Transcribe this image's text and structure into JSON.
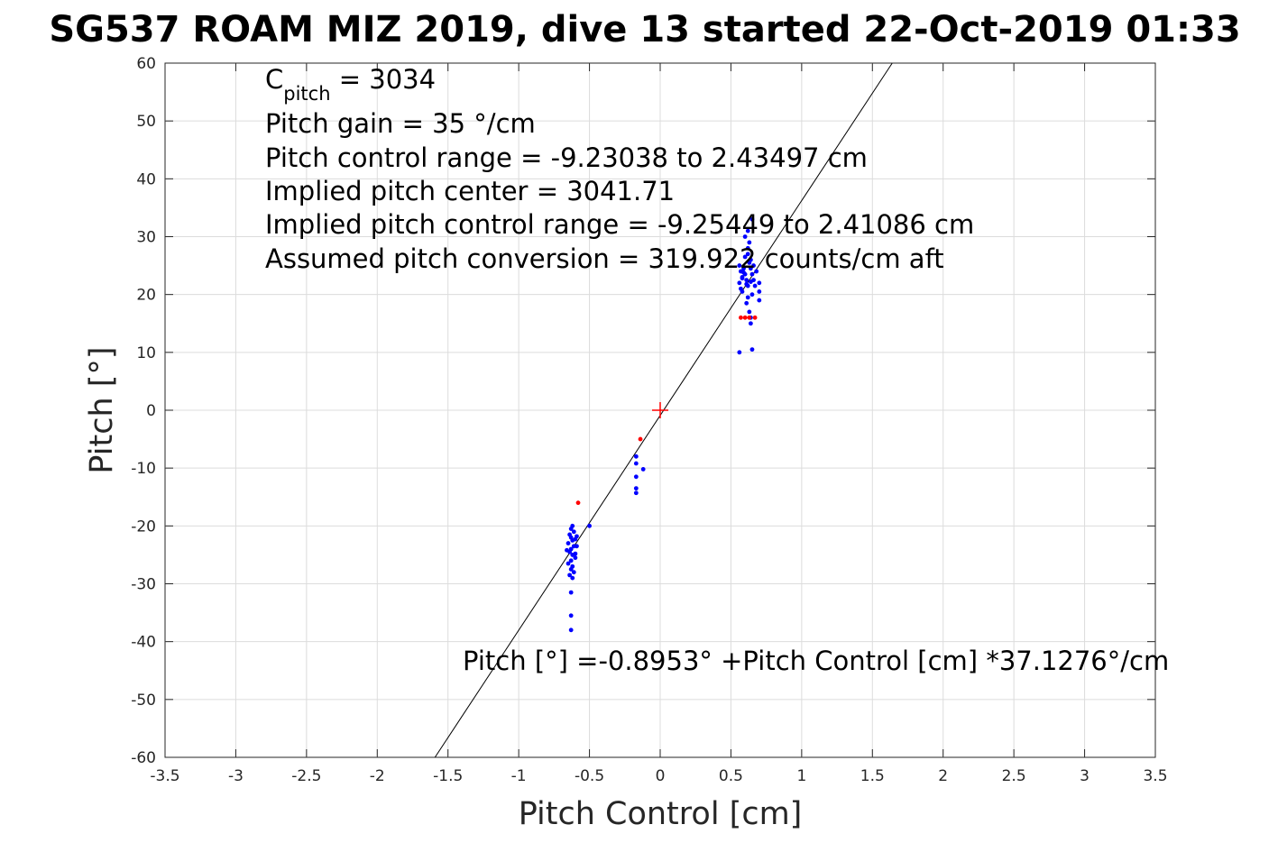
{
  "chart_data": {
    "type": "scatter",
    "title": "SG537 ROAM MIZ 2019, dive 13 started 22-Oct-2019 01:33",
    "xlabel": "Pitch Control [cm]",
    "ylabel": "Pitch [°]",
    "xlim": [
      -3.5,
      3.5
    ],
    "ylim": [
      -60,
      60
    ],
    "x_ticks": [
      -3.5,
      -3,
      -2.5,
      -2,
      -1.5,
      -1,
      -0.5,
      0,
      0.5,
      1,
      1.5,
      2,
      2.5,
      3,
      3.5
    ],
    "y_ticks": [
      -60,
      -50,
      -40,
      -30,
      -20,
      -10,
      0,
      10,
      20,
      30,
      40,
      50,
      60
    ],
    "x_tick_labels": [
      "-3.5",
      "-3",
      "-2.5",
      "-2",
      "-1.5",
      "-1",
      "-0.5",
      "0",
      "0.5",
      "1",
      "1.5",
      "2",
      "2.5",
      "3",
      "3.5"
    ],
    "y_tick_labels": [
      "-60",
      "-50",
      "-40",
      "-30",
      "-20",
      "-10",
      "0",
      "10",
      "20",
      "30",
      "40",
      "50",
      "60"
    ],
    "grid": true,
    "annotations": {
      "c_pitch_symbol": "C",
      "c_pitch_subscript": "pitch",
      "c_pitch_value": " = 3034",
      "lines": [
        "Pitch gain = 35 °/cm",
        "Pitch control range = -9.23038 to 2.43497 cm",
        "Implied pitch center = 3041.71",
        "Implied pitch control range = -9.25449 to 2.41086 cm",
        "Assumed pitch conversion = 319.922 counts/cm aft"
      ],
      "fit_label": "Pitch [°] =-0.8953° +Pitch Control [cm] *37.1276°/cm"
    },
    "fit_line": {
      "intercept": -0.8953,
      "slope": 37.1276,
      "color": "#000000"
    },
    "center_marker": {
      "x": 0,
      "y": 0,
      "color": "#ff0000"
    },
    "series": [
      {
        "color": "#0000ff",
        "points": [
          [
            -0.64,
            -21.5
          ],
          [
            -0.63,
            -22.0
          ],
          [
            -0.62,
            -22.5
          ],
          [
            -0.65,
            -23.0
          ],
          [
            -0.61,
            -23.5
          ],
          [
            -0.63,
            -24.0
          ],
          [
            -0.64,
            -24.5
          ],
          [
            -0.62,
            -25.0
          ],
          [
            -0.6,
            -25.5
          ],
          [
            -0.63,
            -26.0
          ],
          [
            -0.65,
            -26.5
          ],
          [
            -0.62,
            -27.0
          ],
          [
            -0.63,
            -27.5
          ],
          [
            -0.61,
            -28.0
          ],
          [
            -0.64,
            -28.5
          ],
          [
            -0.62,
            -29.0
          ],
          [
            -0.63,
            -20.5
          ],
          [
            -0.61,
            -21.0
          ],
          [
            -0.6,
            -22.3
          ],
          [
            -0.59,
            -23.5
          ],
          [
            -0.66,
            -24.2
          ],
          [
            -0.6,
            -24.8
          ],
          [
            -0.59,
            -21.8
          ],
          [
            -0.62,
            -20.0
          ],
          [
            -0.63,
            -31.5
          ],
          [
            -0.63,
            -35.5
          ],
          [
            -0.63,
            -38.0
          ],
          [
            -0.5,
            -20.0
          ],
          [
            -0.17,
            -8.0
          ],
          [
            -0.17,
            -9.2
          ],
          [
            -0.17,
            -11.5
          ],
          [
            -0.17,
            -13.5
          ],
          [
            -0.17,
            -14.3
          ],
          [
            -0.12,
            -10.2
          ],
          [
            0.56,
            25.0
          ],
          [
            0.57,
            24.0
          ],
          [
            0.58,
            23.0
          ],
          [
            0.56,
            22.0
          ],
          [
            0.57,
            21.0
          ],
          [
            0.58,
            20.5
          ],
          [
            0.59,
            24.5
          ],
          [
            0.6,
            23.5
          ],
          [
            0.61,
            22.5
          ],
          [
            0.62,
            21.5
          ],
          [
            0.63,
            25.5
          ],
          [
            0.64,
            24.5
          ],
          [
            0.65,
            23.5
          ],
          [
            0.66,
            22.5
          ],
          [
            0.67,
            21.5
          ],
          [
            0.6,
            26.5
          ],
          [
            0.62,
            27.0
          ],
          [
            0.64,
            26.0
          ],
          [
            0.66,
            25.0
          ],
          [
            0.68,
            24.0
          ],
          [
            0.7,
            22.0
          ],
          [
            0.7,
            20.5
          ],
          [
            0.7,
            19.0
          ],
          [
            0.65,
            20.0
          ],
          [
            0.62,
            19.5
          ],
          [
            0.61,
            18.5
          ],
          [
            0.63,
            17.0
          ],
          [
            0.64,
            16.0
          ],
          [
            0.64,
            15.0
          ],
          [
            0.62,
            28.0
          ],
          [
            0.63,
            29.0
          ],
          [
            0.62,
            31.0
          ],
          [
            0.65,
            33.0
          ],
          [
            0.6,
            30.0
          ],
          [
            0.65,
            10.5
          ],
          [
            0.56,
            10.0
          ],
          [
            0.58,
            22.8
          ],
          [
            0.61,
            21.8
          ],
          [
            0.59,
            23.8
          ],
          [
            0.64,
            22.2
          ]
        ]
      },
      {
        "color": "#ff0000",
        "points": [
          [
            -0.58,
            -16.0
          ],
          [
            -0.14,
            -5.0
          ],
          [
            0.57,
            16.0
          ],
          [
            0.6,
            16.0
          ],
          [
            0.63,
            16.0
          ],
          [
            0.67,
            16.0
          ]
        ]
      }
    ]
  }
}
